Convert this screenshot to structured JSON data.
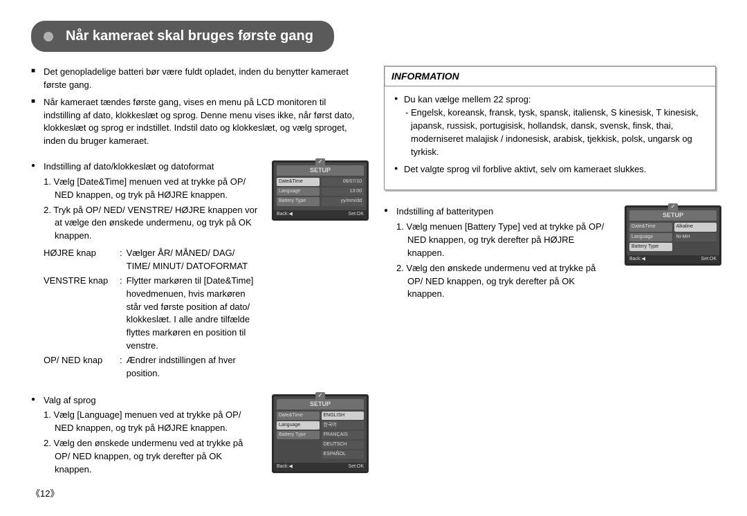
{
  "pageNumber": "《12》",
  "title": "Når kameraet skal bruges første gang",
  "intro": [
    "Det genopladelige batteri bør være fuldt opladet, inden du benytter kameraet første gang.",
    "Når kameraet tændes første gang, vises en menu på LCD monitoren til indstilling af dato, klokkeslæt og sprog. Denne menu vises ikke, når først dato, klokkeslæt og sprog er indstillet. Indstil dato og klokkeslæt, og vælg sproget, inden du bruger kameraet."
  ],
  "section_datetime": {
    "heading": "Indstilling af dato/klokkeslæt og datoformat",
    "steps": [
      "1. Vælg [Date&Time] menuen ved at trykke på OP/ NED knappen, og tryk på HØJRE knappen.",
      "2. Tryk på OP/ NED/ VENSTRE/ HØJRE knappen vor at vælge den ønskede undermenu, og tryk på OK knappen."
    ],
    "keys": [
      {
        "name": "HØJRE knap",
        "desc": "Vælger ÅR/ MÅNED/ DAG/ TIME/ MINUT/ DATOFORMAT"
      },
      {
        "name": "VENSTRE knap",
        "desc": "Flytter markøren til [Date&Time] hovedmenuen, hvis markøren står ved første position af dato/ klokkeslæt. I alle andre tilfælde flyttes markøren en position til venstre."
      },
      {
        "name": "OP/ NED knap",
        "desc": "Ændrer indstillingen af hver position."
      }
    ]
  },
  "section_language": {
    "heading": "Valg af sprog",
    "steps": [
      "1. Vælg [Language] menuen ved at trykke på OP/ NED knappen, og tryk på HØJRE knappen.",
      "2. Vælg den ønskede undermenu ved at trykke på OP/ NED knappen, og tryk derefter på OK knappen."
    ]
  },
  "information": {
    "header": "INFORMATION",
    "items": [
      {
        "lead": "Du kan vælge mellem 22 sprog:",
        "sub": "- Engelsk, koreansk, fransk, tysk, spansk, italiensk, S kinesisk, T kinesisk, japansk, russisk, portugisisk, hollandsk, dansk, svensk, finsk, thai, moderniseret malajisk / indonesisk, arabisk, tjekkisk, polsk, ungarsk og tyrkisk."
      },
      {
        "lead": "Det valgte sprog vil forblive aktivt, selv om kameraet slukkes.",
        "sub": ""
      }
    ]
  },
  "section_battery": {
    "heading": "Indstilling af batteritypen",
    "steps": [
      "1. Vælg menuen [Battery Type] ved at trykke på OP/ NED knappen, og tryk derefter på HØJRE knappen.",
      "2. Vælg den ønskede undermenu ved at trykke på OP/ NED knappen, og tryk derefter på OK knappen."
    ]
  },
  "lcd_common": {
    "setup": "SETUP",
    "back": "Back:◀",
    "setok": "Set:OK"
  },
  "lcd_datetime": {
    "left": [
      "Date&Time",
      "Language",
      "Battery Type"
    ],
    "right": [
      "06/07/10",
      "13:00",
      "yy/mm/dd"
    ]
  },
  "lcd_language": {
    "left": [
      "Date&Time",
      "Language",
      "Battery Type"
    ],
    "right": [
      "ENGLISH",
      "한국어",
      "FRANÇAIS",
      "DEUTSCH",
      "ESPAÑOL"
    ]
  },
  "lcd_battery": {
    "left": [
      "Date&Time",
      "Language",
      "Battery Type"
    ],
    "right": [
      "Alkaline",
      "Ni-MH"
    ]
  }
}
